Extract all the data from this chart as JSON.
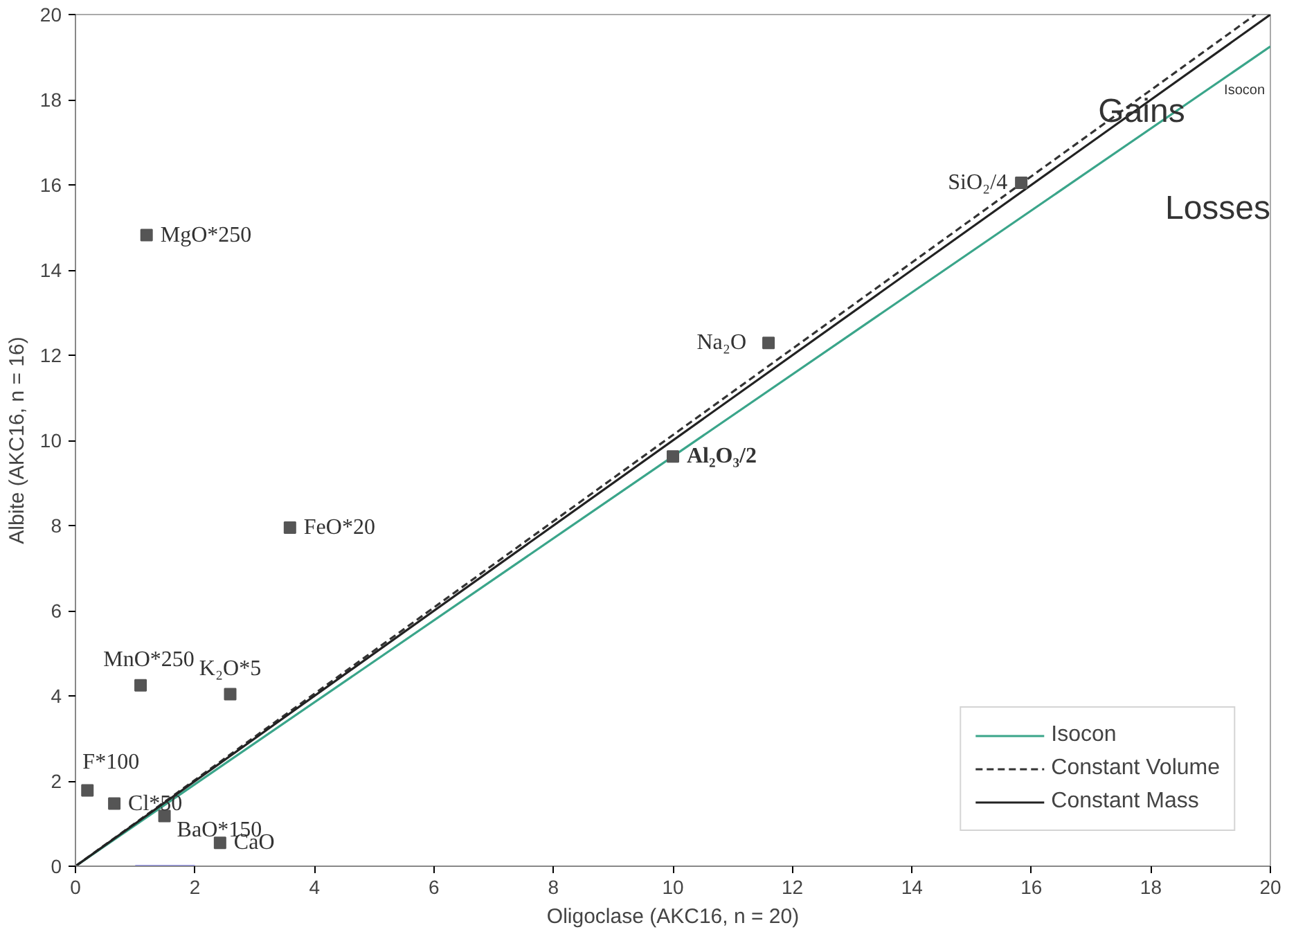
{
  "chart_data": {
    "type": "scatter",
    "xlabel": "Oligoclase (AKC16, n = 20)",
    "ylabel": "Albite (AKC16, n = 16)",
    "xlim": [
      0,
      20
    ],
    "ylim": [
      0,
      20
    ],
    "xticks": [
      0,
      2,
      4,
      6,
      8,
      10,
      12,
      14,
      16,
      18,
      20
    ],
    "yticks": [
      0,
      2,
      4,
      6,
      8,
      10,
      12,
      14,
      16,
      18,
      20
    ],
    "grid": false,
    "legend": "bottom right",
    "series": [
      {
        "type": "line",
        "name": "Isocon",
        "color": "#3aa58a",
        "line_style": "solid",
        "x": [
          0,
          20
        ],
        "values": [
          0,
          19.25
        ]
      },
      {
        "type": "line",
        "name": "Constant Volume",
        "color": "#333333",
        "line_style": "dashed",
        "x": [
          0,
          19.75
        ],
        "values": [
          0,
          20
        ]
      },
      {
        "type": "line",
        "name": "Constant Mass",
        "color": "#222222",
        "line_style": "solid",
        "x": [
          0,
          20
        ],
        "values": [
          0,
          20
        ]
      },
      {
        "type": "line",
        "color": "#3333ff",
        "line_style": "solid",
        "x": [
          1,
          2
        ],
        "values": [
          0,
          0
        ]
      },
      {
        "marker": "square",
        "color": "#555555",
        "x": [
          1.19,
          3.59,
          1.09,
          2.59,
          0.2,
          0.65,
          1.49,
          2.42,
          11.6,
          10.0,
          15.83
        ],
        "values": [
          14.82,
          7.95,
          4.25,
          4.04,
          1.78,
          1.47,
          1.18,
          0.55,
          12.29,
          9.62,
          16.05
        ]
      }
    ],
    "annotations": [
      {
        "text": "MgO*250",
        "x": 1.19,
        "y": 14.82
      },
      {
        "text": "FeO*20",
        "x": 3.59,
        "y": 7.95
      },
      {
        "text": "MnO*250",
        "x": 1.09,
        "y": 4.25
      },
      {
        "text": "K₂O*5",
        "x": 2.59,
        "y": 4.04
      },
      {
        "text": "F*100",
        "x": 0.2,
        "y": 1.78
      },
      {
        "text": "Cl*50",
        "x": 0.65,
        "y": 1.47
      },
      {
        "text": "BaO*150",
        "x": 1.49,
        "y": 1.18
      },
      {
        "text": "CaO",
        "x": 2.42,
        "y": 0.55
      },
      {
        "text": "Na₂O",
        "x": 11.6,
        "y": 12.29
      },
      {
        "text": "Al₂O₃/2",
        "x": 10.0,
        "y": 9.62
      },
      {
        "text": "SiO₂/4",
        "x": 15.83,
        "y": 16.05
      },
      "Gains",
      "Losses",
      "Isocon"
    ]
  }
}
